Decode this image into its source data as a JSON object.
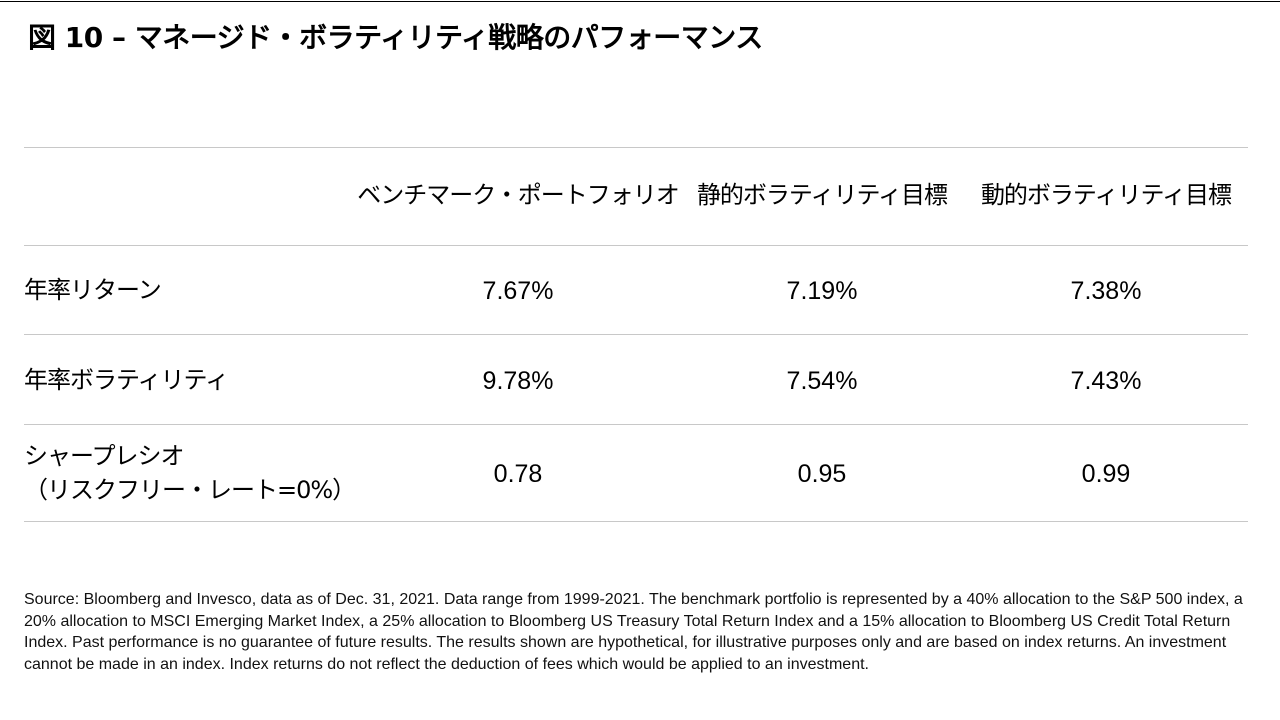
{
  "title": "図 10 – マネージド・ボラティリティ戦略のパフォーマンス",
  "table": {
    "columns": [
      "ベンチマーク・ポートフォリオ",
      "静的ボラティリティ目標",
      "動的ボラティリティ目標"
    ],
    "rows": [
      {
        "label": "年率リターン",
        "values": [
          "7.67%",
          "7.19%",
          "7.38%"
        ]
      },
      {
        "label": "年率ボラティリティ",
        "values": [
          "9.78%",
          "7.54%",
          "7.43%"
        ]
      },
      {
        "label": "シャープレシオ",
        "label_line2": "（リスクフリー・レート=0%）",
        "values": [
          "0.78",
          "0.95",
          "0.99"
        ]
      }
    ]
  },
  "source": "Source: Bloomberg and Invesco, data as of Dec. 31, 2021. Data range from 1999-2021. The benchmark portfolio is represented by a 40% allocation to the S&P 500 index, a 20% allocation to MSCI Emerging Market Index, a 25% allocation to Bloomberg US Treasury Total Return Index and a 15% allocation to Bloomberg US Credit Total Return Index. Past performance is no guarantee of future results. The results shown are hypothetical, for illustrative purposes only and are based on index returns. An investment cannot be made in an index. Index returns do not reflect the deduction of fees which would be applied to an investment."
}
